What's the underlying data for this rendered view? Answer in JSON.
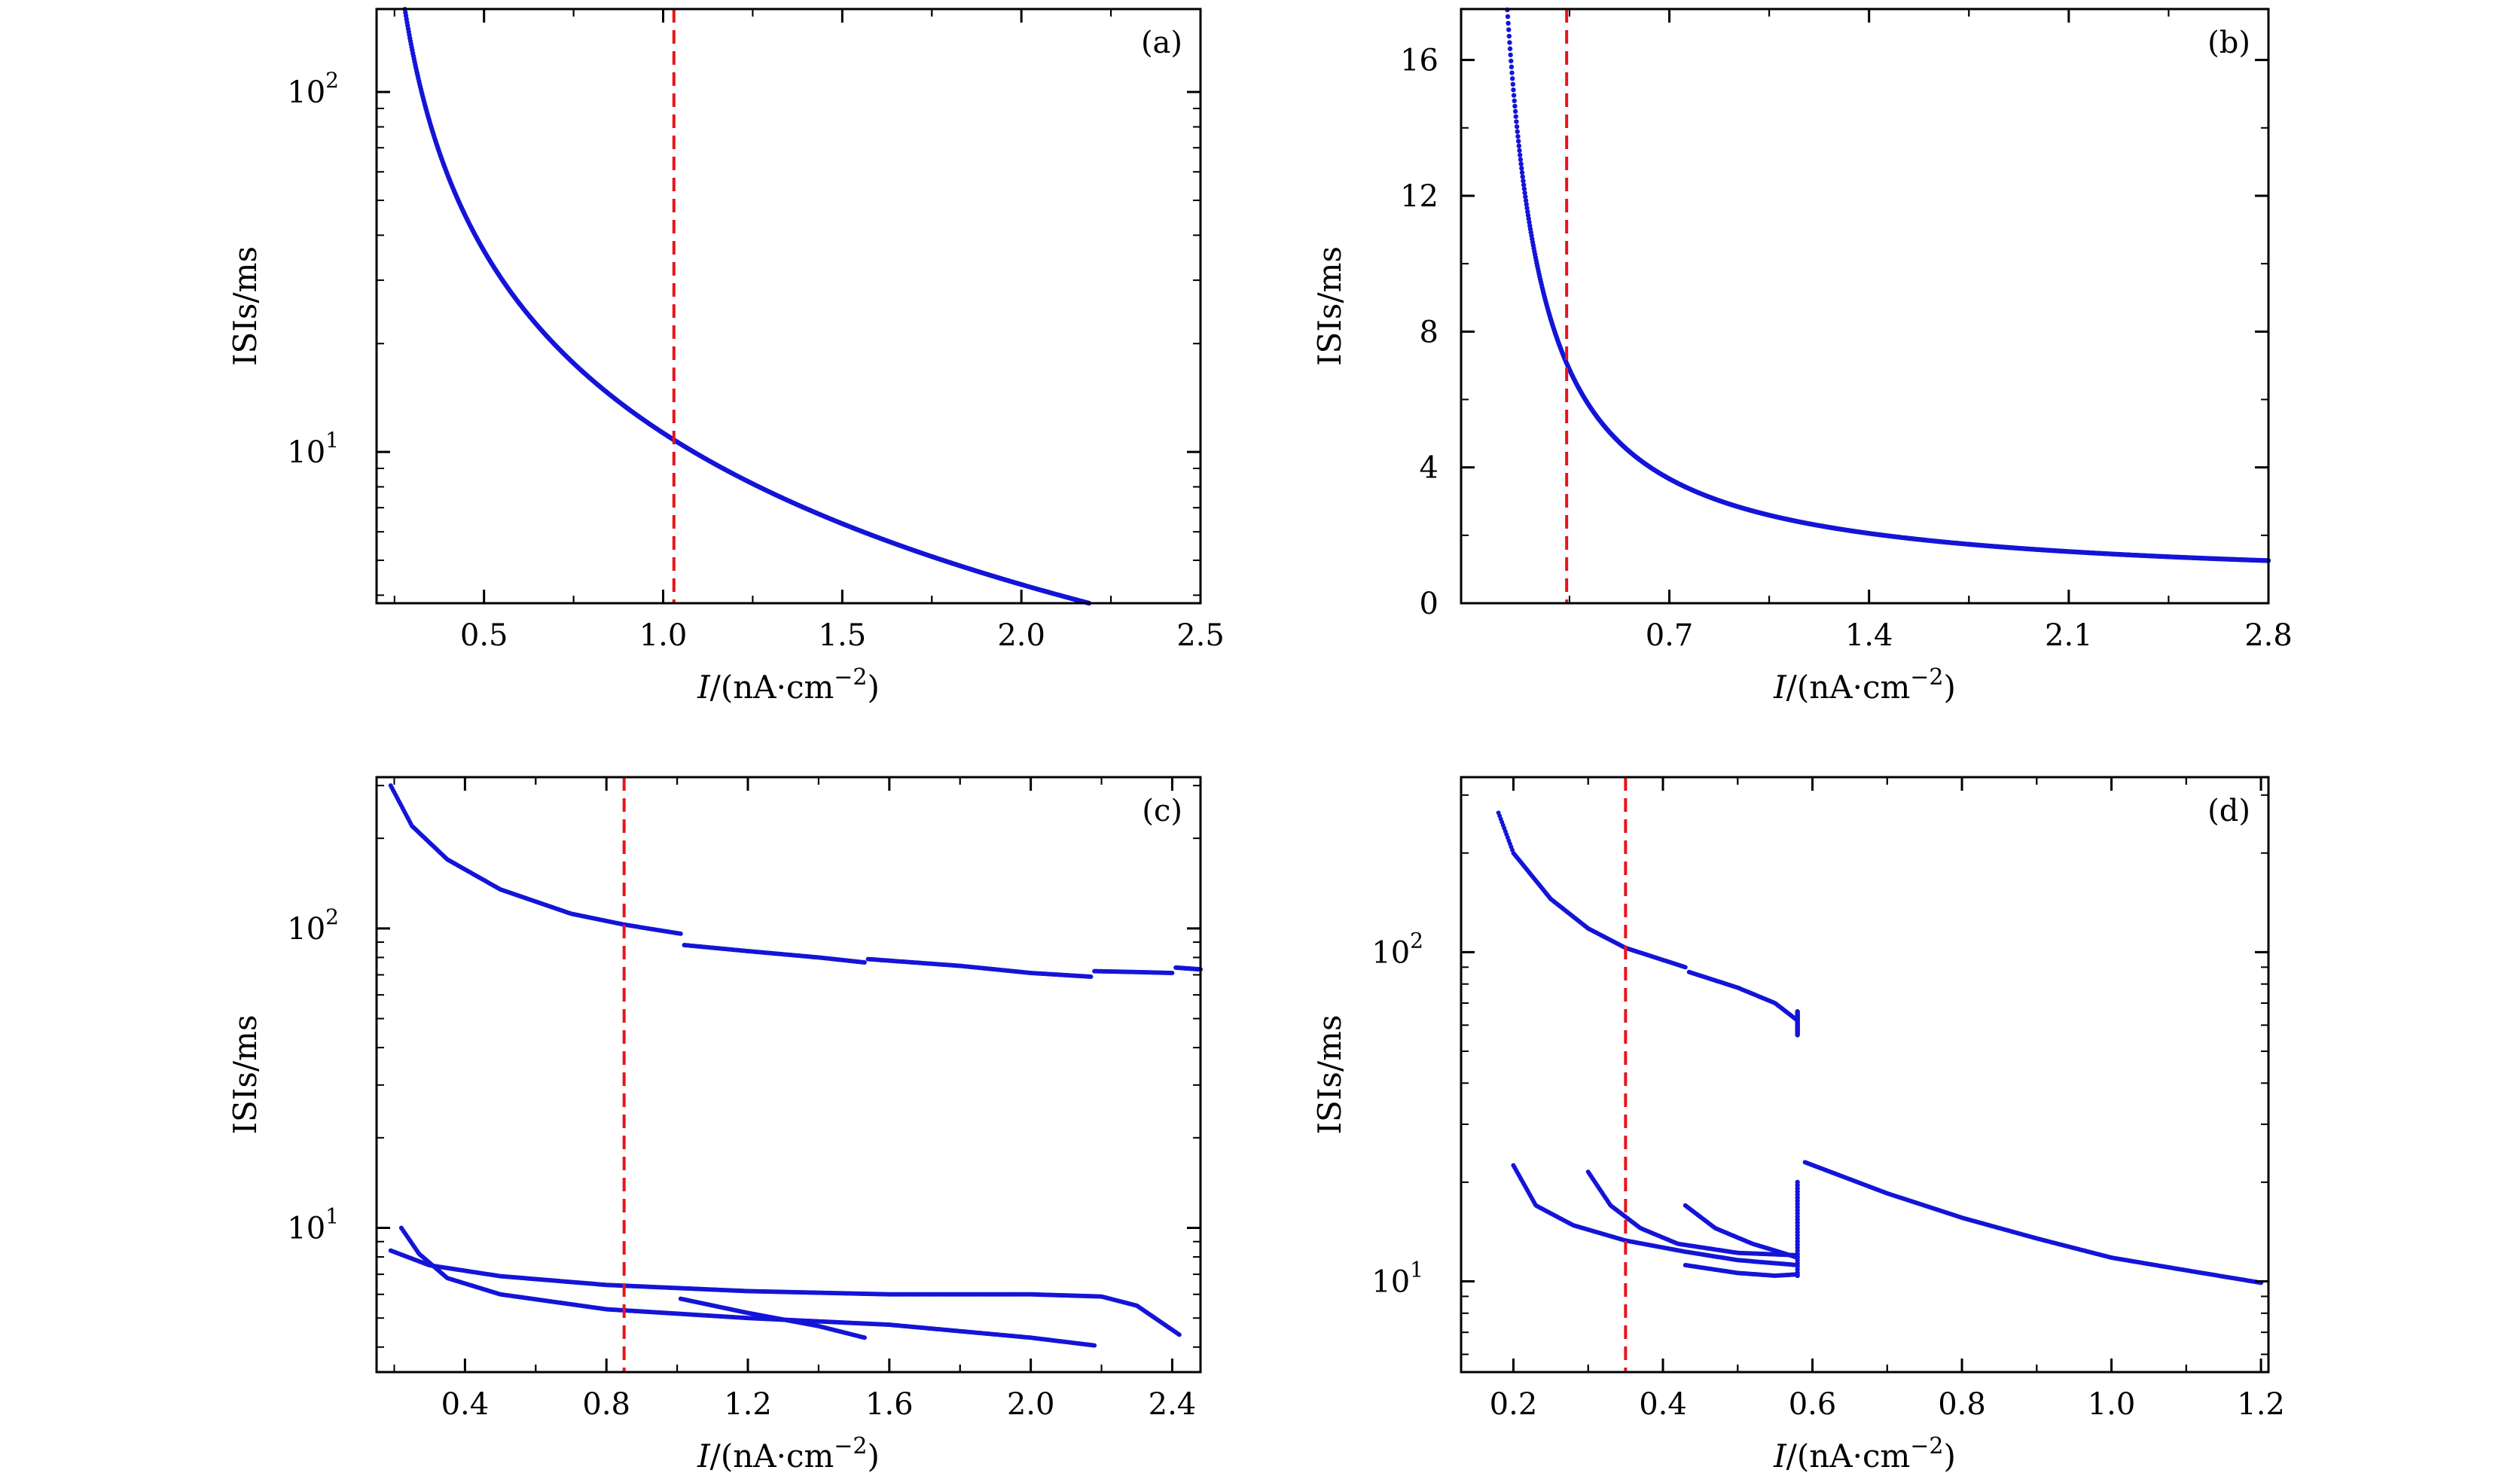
{
  "colors": {
    "points": "#1414d8",
    "threshold": "#e8141a",
    "axes": "#000000"
  },
  "chart_data": [
    {
      "type": "scatter",
      "panel": "(a)",
      "xlabel_italic": "I",
      "xlabel_rest": "/(nA·cm",
      "xlabel_sup": "−2",
      "xlabel_close": ")",
      "ylabel": "ISIs/ms",
      "yscale": "log",
      "xlim": [
        0.2,
        2.5
      ],
      "ylim": [
        3.8,
        170
      ],
      "x_ticks": [
        0.5,
        1.0,
        1.5,
        2.0,
        2.5
      ],
      "x_tick_labels": [
        "0.5",
        "1.0",
        "1.5",
        "2.0",
        "2.5"
      ],
      "y_ticks": [
        10,
        100
      ],
      "y_tick_base": [
        "10",
        "10"
      ],
      "y_tick_exp": [
        "1",
        "2"
      ],
      "threshold_x": 1.03,
      "series": [
        {
          "name": "ISI",
          "kind": "powerlaw",
          "x_start": 0.265,
          "x_end": 2.5,
          "k": 8.7,
          "p": 1.2,
          "x0": 0.195
        }
      ]
    },
    {
      "type": "scatter",
      "panel": "(b)",
      "xlabel_italic": "I",
      "xlabel_rest": "/(nA·cm",
      "xlabel_sup": "−2",
      "xlabel_close": ")",
      "ylabel": "ISIs/ms",
      "yscale": "linear",
      "xlim": [
        -0.03,
        2.8
      ],
      "ylim": [
        0,
        17.5
      ],
      "x_ticks": [
        0.7,
        1.4,
        2.1,
        2.8
      ],
      "x_tick_labels": [
        "0.7",
        "1.4",
        "2.1",
        "2.8"
      ],
      "y_ticks": [
        0,
        4,
        8,
        12,
        16
      ],
      "y_tick_labels": [
        "0",
        "4",
        "8",
        "12",
        "16"
      ],
      "threshold_x": 0.34,
      "series": [
        {
          "name": "ISI",
          "kind": "hyperbola",
          "x_start": 0.1,
          "x_end": 2.8,
          "a": 2.25,
          "x0": 0.0
        }
      ]
    },
    {
      "type": "scatter",
      "panel": "(c)",
      "xlabel_italic": "I",
      "xlabel_rest": "/(nA·cm",
      "xlabel_sup": "−2",
      "xlabel_close": ")",
      "ylabel": "ISIs/ms",
      "yscale": "log",
      "xlim": [
        0.15,
        2.48
      ],
      "ylim": [
        3.3,
        320
      ],
      "x_ticks": [
        0.4,
        0.8,
        1.2,
        1.6,
        2.0,
        2.4
      ],
      "x_tick_labels": [
        "0.4",
        "0.8",
        "1.2",
        "1.6",
        "2.0",
        "2.4"
      ],
      "y_ticks": [
        10,
        100
      ],
      "y_tick_base": [
        "10",
        "10"
      ],
      "y_tick_exp": [
        "1",
        "2"
      ],
      "threshold_x": 0.85,
      "series": [
        {
          "name": "long ISI 1",
          "kind": "knots",
          "knots": [
            [
              0.19,
              300
            ],
            [
              0.25,
              220
            ],
            [
              0.35,
              170
            ],
            [
              0.5,
              135
            ],
            [
              0.7,
              112
            ],
            [
              0.85,
              103
            ],
            [
              1.01,
              96
            ]
          ]
        },
        {
          "name": "long ISI 2",
          "kind": "knots",
          "knots": [
            [
              1.02,
              88
            ],
            [
              1.2,
              84
            ],
            [
              1.4,
              80
            ],
            [
              1.53,
              77
            ]
          ]
        },
        {
          "name": "long ISI 3",
          "kind": "knots",
          "knots": [
            [
              1.54,
              79
            ],
            [
              1.8,
              75
            ],
            [
              2.0,
              71
            ],
            [
              2.17,
              69
            ]
          ]
        },
        {
          "name": "long ISI 4",
          "kind": "knots",
          "knots": [
            [
              2.18,
              72
            ],
            [
              2.3,
              71.5
            ],
            [
              2.4,
              71
            ]
          ]
        },
        {
          "name": "long ISI 5",
          "kind": "knots",
          "knots": [
            [
              2.41,
              74
            ],
            [
              2.48,
              73
            ]
          ]
        },
        {
          "name": "short ISI upper",
          "kind": "knots",
          "knots": [
            [
              0.19,
              8.4
            ],
            [
              0.3,
              7.5
            ],
            [
              0.5,
              6.9
            ],
            [
              0.8,
              6.45
            ],
            [
              1.2,
              6.15
            ],
            [
              1.6,
              6.0
            ],
            [
              2.0,
              6.0
            ],
            [
              2.2,
              5.9
            ],
            [
              2.3,
              5.5
            ],
            [
              2.42,
              4.4
            ]
          ]
        },
        {
          "name": "short ISI lower",
          "kind": "knots",
          "knots": [
            [
              0.22,
              10.0
            ],
            [
              0.27,
              8.2
            ],
            [
              0.35,
              6.8
            ],
            [
              0.5,
              6.0
            ],
            [
              0.8,
              5.35
            ],
            [
              1.2,
              5.0
            ],
            [
              1.6,
              4.75
            ],
            [
              2.0,
              4.3
            ],
            [
              2.18,
              4.05
            ]
          ]
        },
        {
          "name": "short ISI branch",
          "kind": "knots",
          "knots": [
            [
              1.01,
              5.8
            ],
            [
              1.2,
              5.2
            ],
            [
              1.4,
              4.7
            ],
            [
              1.53,
              4.3
            ]
          ]
        }
      ]
    },
    {
      "type": "scatter",
      "panel": "(d)",
      "xlabel_italic": "I",
      "xlabel_rest": "/(nA·cm",
      "xlabel_sup": "−2",
      "xlabel_close": ")",
      "ylabel": "ISIs/ms",
      "yscale": "log",
      "xlim": [
        0.13,
        1.21
      ],
      "ylim": [
        5.3,
        340
      ],
      "x_ticks": [
        0.2,
        0.4,
        0.6,
        0.8,
        1.0,
        1.2
      ],
      "x_tick_labels": [
        "0.2",
        "0.4",
        "0.6",
        "0.8",
        "1.0",
        "1.2"
      ],
      "y_ticks": [
        10,
        100
      ],
      "y_tick_base": [
        "10",
        "10"
      ],
      "y_tick_exp": [
        "1",
        "2"
      ],
      "threshold_x": 0.35,
      "series": [
        {
          "name": "long ISI 1",
          "kind": "knots",
          "knots": [
            [
              0.18,
              265
            ],
            [
              0.2,
              200
            ],
            [
              0.25,
              145
            ],
            [
              0.3,
              118
            ],
            [
              0.35,
              103
            ],
            [
              0.43,
              90
            ]
          ]
        },
        {
          "name": "long ISI 2",
          "kind": "knots",
          "knots": [
            [
              0.435,
              87
            ],
            [
              0.5,
              78
            ],
            [
              0.55,
              70
            ],
            [
              0.58,
              62
            ]
          ]
        },
        {
          "name": "short ISI 1",
          "kind": "knots",
          "knots": [
            [
              0.2,
              22.5
            ],
            [
              0.23,
              17
            ],
            [
              0.28,
              14.8
            ],
            [
              0.35,
              13.3
            ],
            [
              0.43,
              12.3
            ],
            [
              0.5,
              11.6
            ],
            [
              0.58,
              11.2
            ]
          ]
        },
        {
          "name": "short ISI 2",
          "kind": "knots",
          "knots": [
            [
              0.3,
              21.5
            ],
            [
              0.33,
              17
            ],
            [
              0.37,
              14.5
            ],
            [
              0.42,
              13
            ],
            [
              0.5,
              12.2
            ],
            [
              0.58,
              12
            ]
          ]
        },
        {
          "name": "short ISI 3",
          "kind": "knots",
          "knots": [
            [
              0.43,
              17
            ],
            [
              0.47,
              14.5
            ],
            [
              0.52,
              13
            ],
            [
              0.56,
              12.2
            ],
            [
              0.58,
              11.8
            ]
          ]
        },
        {
          "name": "short ISI 4",
          "kind": "knots",
          "knots": [
            [
              0.43,
              11.2
            ],
            [
              0.5,
              10.6
            ],
            [
              0.55,
              10.4
            ],
            [
              0.58,
              10.5
            ]
          ]
        },
        {
          "name": "jump",
          "kind": "vertical",
          "x": 0.58,
          "y_from": 10.4,
          "y_to": 20.0
        },
        {
          "name": "jump long",
          "kind": "vertical",
          "x": 0.58,
          "y_from": 56,
          "y_to": 66
        },
        {
          "name": "single ISI",
          "kind": "knots",
          "knots": [
            [
              0.59,
              23
            ],
            [
              0.7,
              18.5
            ],
            [
              0.8,
              15.6
            ],
            [
              0.9,
              13.5
            ],
            [
              1.0,
              11.8
            ],
            [
              1.1,
              10.8
            ],
            [
              1.2,
              9.9
            ]
          ]
        }
      ]
    }
  ]
}
